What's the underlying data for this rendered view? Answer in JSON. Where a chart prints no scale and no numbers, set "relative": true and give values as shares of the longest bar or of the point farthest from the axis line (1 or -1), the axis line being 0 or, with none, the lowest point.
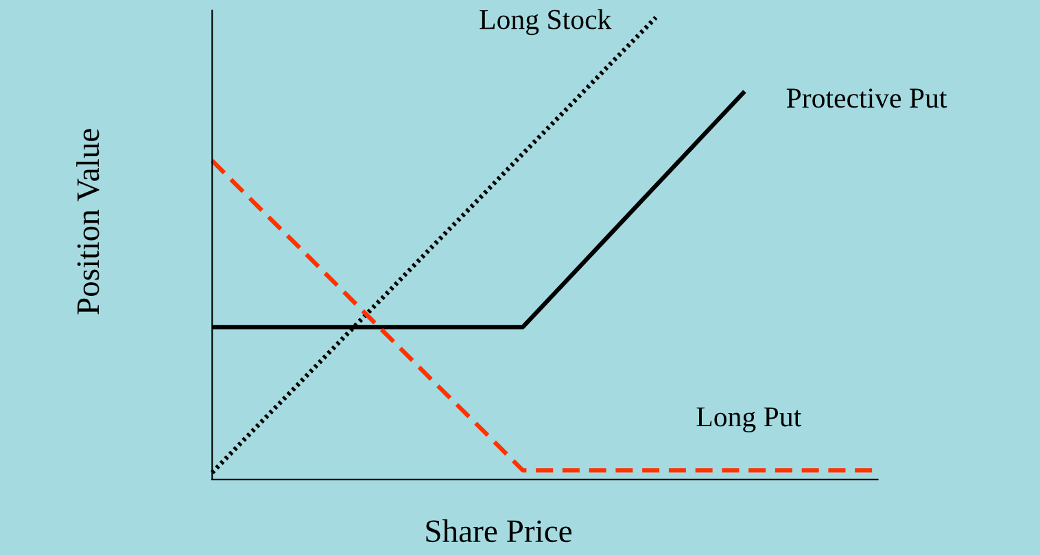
{
  "chart_data": {
    "type": "line",
    "relative": true,
    "xlabel": "Share Price",
    "ylabel": "Position Value",
    "categories": [
      null,
      null,
      null,
      null,
      null,
      null,
      null,
      null,
      null,
      null,
      null,
      null,
      null,
      null,
      null,
      null
    ],
    "series": [
      {
        "name": "Long Stock",
        "color": "#000000",
        "line_style": "dotted",
        "values": [
          0.015,
          0.114,
          0.212,
          0.311,
          0.409,
          0.508,
          0.606,
          0.705,
          0.803,
          0.902,
          1.0,
          null,
          null,
          null,
          null,
          null
        ]
      },
      {
        "name": "Protective Put",
        "color": "#000000",
        "line_style": "solid",
        "values": [
          0.33,
          0.33,
          0.33,
          0.33,
          0.33,
          0.33,
          0.33,
          0.33,
          0.432,
          0.534,
          0.636,
          0.738,
          0.84,
          null,
          null,
          null
        ]
      },
      {
        "name": "Long Put",
        "color": "#ff3300",
        "line_style": "dashed",
        "values": [
          0.69,
          0.594,
          0.499,
          0.403,
          0.307,
          0.211,
          0.116,
          0.02,
          0.02,
          0.02,
          0.02,
          0.02,
          0.02,
          0.02,
          0.02,
          0.02
        ]
      }
    ]
  }
}
